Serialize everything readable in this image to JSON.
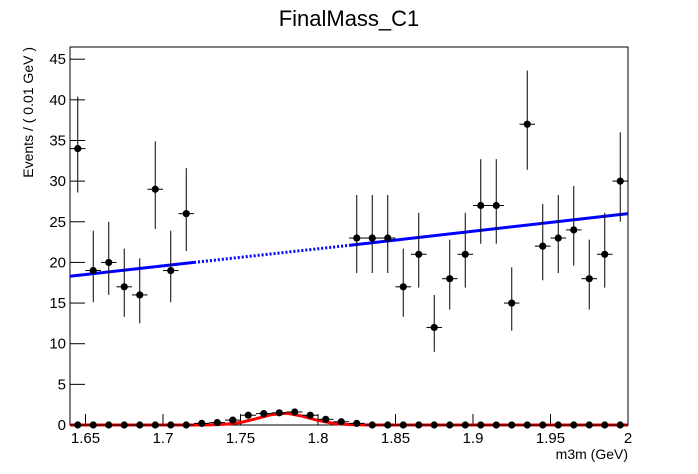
{
  "chart_data": {
    "type": "errorbar",
    "title": "FinalMass_C1",
    "xlabel": "m3m (GeV)",
    "ylabel": "Events / ( 0.01 GeV )",
    "xlim": [
      1.64,
      2.0
    ],
    "ylim": [
      0,
      46.5
    ],
    "xticks": [
      1.65,
      1.7,
      1.75,
      1.8,
      1.85,
      1.9,
      1.95,
      2
    ],
    "yticks": [
      0,
      5,
      10,
      15,
      20,
      25,
      30,
      35,
      40,
      45
    ],
    "bin_width": 0.01,
    "series": [
      {
        "kind": "points",
        "color": "#000000",
        "x": [
          1.645,
          1.655,
          1.665,
          1.675,
          1.685,
          1.695,
          1.705,
          1.715,
          1.825,
          1.835,
          1.845,
          1.855,
          1.865,
          1.875,
          1.885,
          1.895,
          1.905,
          1.915,
          1.925,
          1.935,
          1.945,
          1.955,
          1.965,
          1.975,
          1.985,
          1.995
        ],
        "values": [
          34,
          19,
          20,
          17,
          16,
          29,
          19,
          26,
          23,
          23,
          23,
          17,
          21,
          12,
          18,
          21,
          27,
          27,
          15,
          37,
          22,
          23,
          24,
          18,
          21,
          30
        ],
        "yerr_low": [
          5.4,
          3.9,
          4.0,
          3.7,
          3.5,
          4.9,
          3.9,
          4.6,
          4.3,
          4.3,
          4.3,
          3.7,
          4.1,
          3.0,
          3.8,
          4.1,
          4.7,
          4.7,
          3.4,
          5.6,
          4.2,
          4.3,
          4.4,
          3.8,
          4.1,
          5.0
        ],
        "yerr_high": [
          6.4,
          4.9,
          5.0,
          4.7,
          4.5,
          5.9,
          4.9,
          5.6,
          5.3,
          5.3,
          5.3,
          4.7,
          5.1,
          4.0,
          4.8,
          5.1,
          5.7,
          5.7,
          4.4,
          6.6,
          5.2,
          5.3,
          5.4,
          4.8,
          5.1,
          6.0
        ]
      },
      {
        "kind": "points",
        "color": "#000000",
        "x": [
          1.645,
          1.655,
          1.665,
          1.675,
          1.685,
          1.695,
          1.705,
          1.715,
          1.725,
          1.735,
          1.745,
          1.755,
          1.765,
          1.775,
          1.785,
          1.795,
          1.805,
          1.815,
          1.825,
          1.835,
          1.845,
          1.855,
          1.865,
          1.875,
          1.885,
          1.895,
          1.905,
          1.915,
          1.925,
          1.935,
          1.945,
          1.955,
          1.965,
          1.975,
          1.985,
          1.995
        ],
        "values": [
          0,
          0,
          0,
          0,
          0,
          0,
          0,
          0,
          0.2,
          0.3,
          0.6,
          1.2,
          1.4,
          1.5,
          1.6,
          1.2,
          0.7,
          0.4,
          0.2,
          0,
          0,
          0,
          0,
          0,
          0,
          0,
          0,
          0,
          0,
          0,
          0,
          0,
          0,
          0,
          0,
          0
        ]
      },
      {
        "kind": "line",
        "color": "#0000ff",
        "x": [
          1.64,
          1.72,
          1.82,
          2.0
        ],
        "values": [
          18.3,
          20.0,
          22.1,
          26.0
        ],
        "segment_styles": [
          "solid",
          "dotted",
          "solid"
        ]
      },
      {
        "kind": "line",
        "color": "#ff0000",
        "x": [
          1.64,
          1.72,
          1.73,
          1.74,
          1.75,
          1.76,
          1.77,
          1.78,
          1.79,
          1.8,
          1.81,
          1.82,
          1.83,
          1.84,
          2.0
        ],
        "values": [
          0,
          0,
          0.02,
          0.09,
          0.31,
          0.77,
          1.28,
          1.44,
          1.09,
          0.56,
          0.2,
          0.05,
          0.01,
          0,
          0
        ],
        "segment_styles": [
          "solid",
          "solid",
          "solid",
          "solid",
          "solid",
          "solid",
          "solid",
          "solid",
          "solid",
          "solid",
          "solid",
          "solid",
          "solid",
          "solid"
        ]
      }
    ]
  }
}
